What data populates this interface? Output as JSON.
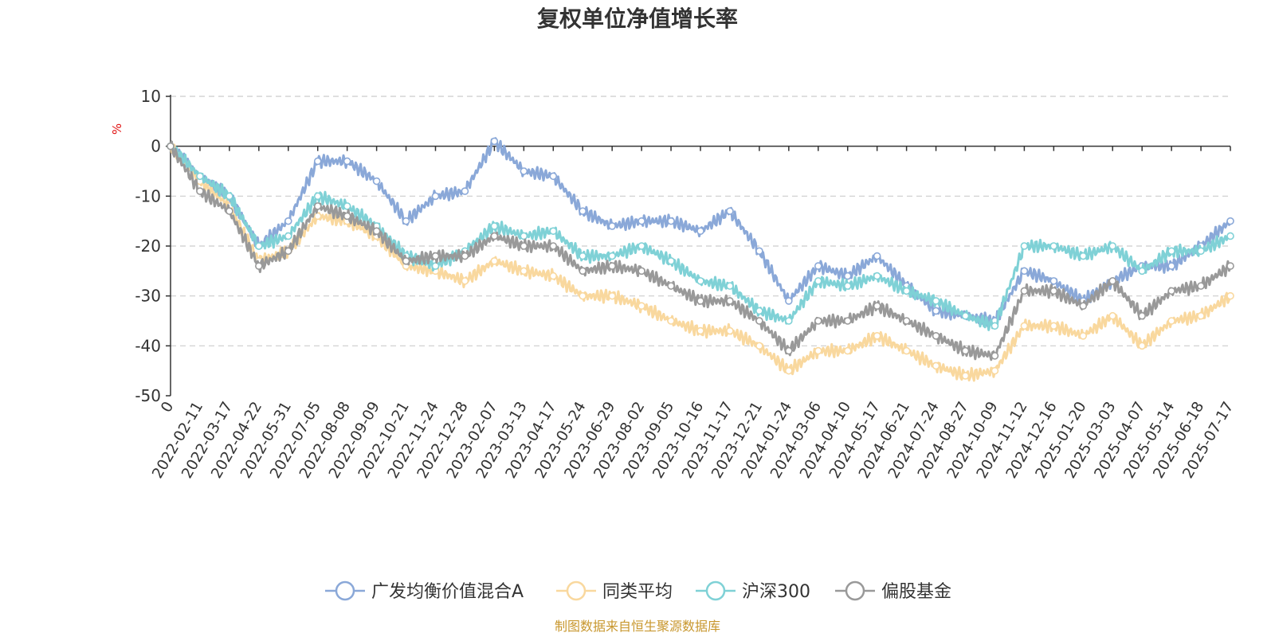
{
  "chart_data": {
    "type": "line",
    "title": "复权单位净值增长率",
    "ylabel": "%",
    "ylim": [
      -50,
      10
    ],
    "yticks": [
      10,
      0,
      -10,
      -20,
      -30,
      -40,
      -50
    ],
    "grid": true,
    "legend_position": "bottom",
    "source_note": "制图数据来自恒生聚源数据库",
    "x": [
      "0",
      "2022-02-11",
      "2022-03-17",
      "2022-04-22",
      "2022-05-31",
      "2022-07-05",
      "2022-08-08",
      "2022-09-09",
      "2022-10-21",
      "2022-11-24",
      "2022-12-28",
      "2023-02-07",
      "2023-03-13",
      "2023-04-17",
      "2023-05-24",
      "2023-06-29",
      "2023-08-02",
      "2023-09-05",
      "2023-10-16",
      "2023-11-17",
      "2023-12-21",
      "2024-01-24",
      "2024-03-06",
      "2024-04-10",
      "2024-05-17",
      "2024-06-21",
      "2024-07-24",
      "2024-08-27",
      "2024-10-09",
      "2024-11-12",
      "2024-12-16",
      "2025-01-20",
      "2025-03-03",
      "2025-04-07",
      "2025-05-14",
      "2025-06-18",
      "2025-07-17"
    ],
    "series": [
      {
        "name": "广发均衡价值混合A",
        "color": "#8aa8d8",
        "values": [
          0,
          -6,
          -10,
          -20,
          -15,
          -3,
          -3,
          -7,
          -15,
          -10,
          -9,
          1,
          -5,
          -6,
          -13,
          -16,
          -15,
          -15,
          -17,
          -13,
          -21,
          -31,
          -24,
          -26,
          -22,
          -28,
          -33,
          -34,
          -35,
          -25,
          -27,
          -31,
          -27,
          -24,
          -24,
          -20,
          -15
        ]
      },
      {
        "name": "同类平均",
        "color": "#f9d89e",
        "values": [
          0,
          -7,
          -12,
          -23,
          -21,
          -14,
          -15,
          -18,
          -24,
          -25,
          -27,
          -23,
          -25,
          -26,
          -30,
          -30,
          -32,
          -35,
          -37,
          -37,
          -40,
          -45,
          -41,
          -41,
          -38,
          -41,
          -44,
          -46,
          -45,
          -36,
          -36,
          -38,
          -34,
          -40,
          -35,
          -34,
          -30
        ]
      },
      {
        "name": "沪深300",
        "color": "#7fd1d6",
        "values": [
          0,
          -6,
          -10,
          -20,
          -18,
          -10,
          -12,
          -16,
          -22,
          -24,
          -21,
          -16,
          -18,
          -17,
          -22,
          -22,
          -20,
          -23,
          -27,
          -28,
          -33,
          -35,
          -27,
          -28,
          -26,
          -29,
          -31,
          -34,
          -36,
          -20,
          -20,
          -22,
          -20,
          -25,
          -21,
          -21,
          -18
        ]
      },
      {
        "name": "偏股基金",
        "color": "#999999",
        "values": [
          0,
          -9,
          -13,
          -24,
          -21,
          -12,
          -14,
          -17,
          -23,
          -22,
          -22,
          -18,
          -20,
          -20,
          -25,
          -24,
          -25,
          -28,
          -31,
          -31,
          -35,
          -41,
          -35,
          -35,
          -32,
          -35,
          -38,
          -41,
          -42,
          -29,
          -29,
          -32,
          -27,
          -34,
          -29,
          -28,
          -24
        ]
      }
    ]
  }
}
